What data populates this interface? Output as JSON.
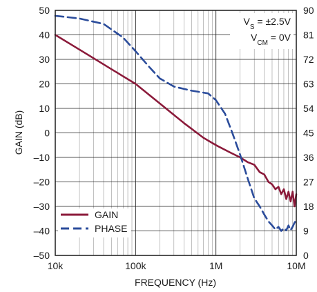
{
  "chart_data": {
    "type": "line",
    "xlabel": "FREQUENCY (Hz)",
    "ylabel": "GAIN (dB)",
    "x_scale": "log",
    "xlim": [
      10000,
      10000000
    ],
    "ylim": [
      -50,
      50
    ],
    "y2lim": [
      0,
      90
    ],
    "grid": true,
    "legend_position": "bottom-left",
    "x_ticks": [
      {
        "value": 10000,
        "label": "10k"
      },
      {
        "value": 100000,
        "label": "100k"
      },
      {
        "value": 1000000,
        "label": "1M"
      },
      {
        "value": 10000000,
        "label": "10M"
      }
    ],
    "y_ticks": [
      {
        "value": 50,
        "label": "50"
      },
      {
        "value": 40,
        "label": "40"
      },
      {
        "value": 30,
        "label": "30"
      },
      {
        "value": 20,
        "label": "20"
      },
      {
        "value": 10,
        "label": "10"
      },
      {
        "value": 0,
        "label": "0"
      },
      {
        "value": -10,
        "label": "–10"
      },
      {
        "value": -20,
        "label": "–20"
      },
      {
        "value": -30,
        "label": "–30"
      },
      {
        "value": -40,
        "label": "–40"
      },
      {
        "value": -50,
        "label": "–50"
      }
    ],
    "y2_ticks": [
      {
        "value": 90,
        "label": "90"
      },
      {
        "value": 81,
        "label": "81"
      },
      {
        "value": 72,
        "label": "72"
      },
      {
        "value": 63,
        "label": "63"
      },
      {
        "value": 54,
        "label": "54"
      },
      {
        "value": 45,
        "label": "45"
      },
      {
        "value": 36,
        "label": "36"
      },
      {
        "value": 27,
        "label": "27"
      },
      {
        "value": 18,
        "label": "18"
      },
      {
        "value": 9,
        "label": "9"
      },
      {
        "value": 0,
        "label": "0"
      }
    ],
    "annotations": {
      "vs_prefix": "V",
      "vs_sub": "S",
      "vs_value": " = ±2.5V",
      "vcm_prefix": "V",
      "vcm_sub": "CM",
      "vcm_value": " = 0V"
    },
    "series": [
      {
        "name": "GAIN",
        "axis": "left",
        "color": "#8b1a3a",
        "style": "solid",
        "x": [
          10000,
          20000,
          50000,
          100000,
          200000,
          400000,
          700000,
          1000000,
          1500000,
          2000000,
          2500000,
          3000000,
          3500000,
          4000000,
          4500000,
          5000000,
          5500000,
          6000000,
          6500000,
          7000000,
          7500000,
          8000000,
          8500000,
          9000000,
          9500000,
          10000000
        ],
        "y": [
          40,
          34,
          26,
          20,
          12,
          4,
          -2,
          -5,
          -8,
          -10,
          -12,
          -13,
          -16,
          -17,
          -20,
          -21,
          -23,
          -22,
          -25,
          -23,
          -27,
          -24,
          -28,
          -24,
          -30,
          -25
        ]
      },
      {
        "name": "PHASE",
        "axis": "right",
        "color": "#2b4c9b",
        "style": "dashed",
        "x": [
          10000,
          20000,
          40000,
          70000,
          100000,
          150000,
          200000,
          300000,
          500000,
          800000,
          1000000,
          1300000,
          1600000,
          2000000,
          2500000,
          3000000,
          3500000,
          4000000,
          4500000,
          5000000,
          5500000,
          6000000,
          6500000,
          7000000,
          7500000,
          8000000,
          8500000,
          9000000,
          9500000,
          10000000
        ],
        "y": [
          88,
          87,
          85,
          80,
          75,
          69,
          65,
          62,
          60.5,
          59.5,
          57,
          52,
          45,
          37,
          28,
          21,
          18,
          15,
          12.5,
          11,
          9.5,
          10.5,
          9,
          10,
          9.2,
          11,
          9.3,
          10.5,
          12,
          13
        ]
      }
    ]
  }
}
